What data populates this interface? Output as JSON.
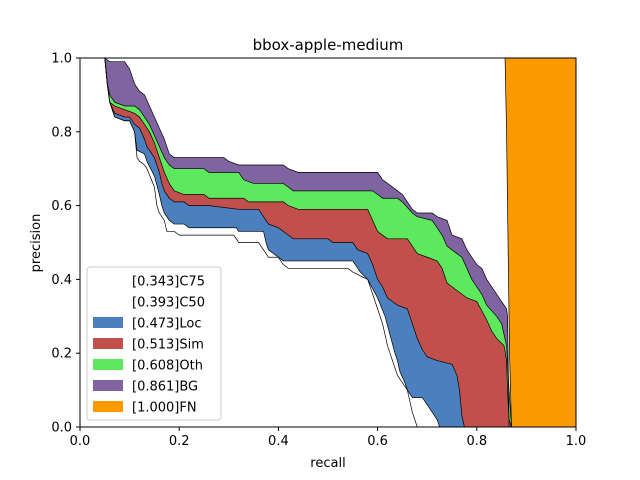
{
  "chart_data": {
    "type": "area",
    "title": "bbox-apple-medium",
    "xlabel": "recall",
    "ylabel": "precision",
    "xlim": [
      0,
      1
    ],
    "ylim": [
      0,
      1
    ],
    "xticks": [
      "0.0",
      "0.2",
      "0.4",
      "0.6",
      "0.8",
      "1.0"
    ],
    "yticks": [
      "0.0",
      "0.2",
      "0.4",
      "0.6",
      "0.8",
      "1.0"
    ],
    "legend_position": "lower-left",
    "grid": false,
    "series": [
      {
        "name": "[0.343]C75",
        "color": "#ffffff",
        "points": [
          [
            0.05,
            1.0
          ],
          [
            0.055,
            0.93
          ],
          [
            0.06,
            0.88
          ],
          [
            0.07,
            0.84
          ],
          [
            0.09,
            0.83
          ],
          [
            0.1,
            0.83
          ],
          [
            0.11,
            0.8
          ],
          [
            0.115,
            0.73
          ],
          [
            0.12,
            0.72
          ],
          [
            0.13,
            0.71
          ],
          [
            0.135,
            0.7
          ],
          [
            0.15,
            0.65
          ],
          [
            0.155,
            0.6
          ],
          [
            0.16,
            0.58
          ],
          [
            0.17,
            0.56
          ],
          [
            0.175,
            0.53
          ],
          [
            0.19,
            0.53
          ],
          [
            0.2,
            0.52
          ],
          [
            0.31,
            0.52
          ],
          [
            0.32,
            0.5
          ],
          [
            0.36,
            0.5
          ],
          [
            0.375,
            0.47
          ],
          [
            0.38,
            0.46
          ],
          [
            0.4,
            0.46
          ],
          [
            0.41,
            0.45
          ],
          [
            0.55,
            0.45
          ],
          [
            0.565,
            0.42
          ],
          [
            0.58,
            0.4
          ],
          [
            0.6,
            0.35
          ],
          [
            0.615,
            0.3
          ],
          [
            0.625,
            0.25
          ],
          [
            0.635,
            0.2
          ],
          [
            0.64,
            0.18
          ],
          [
            0.645,
            0.15
          ],
          [
            0.655,
            0.12
          ],
          [
            0.66,
            0.1
          ],
          [
            0.665,
            0.07
          ],
          [
            0.67,
            0.04
          ],
          [
            0.675,
            0.02
          ],
          [
            0.68,
            0.0
          ]
        ]
      },
      {
        "name": "[0.393]C50",
        "color": "#ffffff",
        "points": [
          [
            0.05,
            1.0
          ],
          [
            0.055,
            0.93
          ],
          [
            0.06,
            0.88
          ],
          [
            0.07,
            0.84
          ],
          [
            0.09,
            0.83
          ],
          [
            0.1,
            0.83
          ],
          [
            0.11,
            0.8
          ],
          [
            0.115,
            0.75
          ],
          [
            0.13,
            0.74
          ],
          [
            0.135,
            0.72
          ],
          [
            0.15,
            0.68
          ],
          [
            0.16,
            0.63
          ],
          [
            0.165,
            0.6
          ],
          [
            0.17,
            0.58
          ],
          [
            0.18,
            0.56
          ],
          [
            0.19,
            0.55
          ],
          [
            0.21,
            0.55
          ],
          [
            0.22,
            0.54
          ],
          [
            0.315,
            0.54
          ],
          [
            0.32,
            0.53
          ],
          [
            0.37,
            0.53
          ],
          [
            0.375,
            0.5
          ],
          [
            0.38,
            0.48
          ],
          [
            0.4,
            0.46
          ],
          [
            0.41,
            0.44
          ],
          [
            0.42,
            0.43
          ],
          [
            0.54,
            0.43
          ],
          [
            0.55,
            0.42
          ],
          [
            0.58,
            0.4
          ],
          [
            0.59,
            0.36
          ],
          [
            0.6,
            0.32
          ],
          [
            0.61,
            0.28
          ],
          [
            0.62,
            0.22
          ],
          [
            0.63,
            0.18
          ],
          [
            0.64,
            0.14
          ],
          [
            0.65,
            0.12
          ],
          [
            0.66,
            0.1
          ],
          [
            0.67,
            0.08
          ],
          [
            0.69,
            0.08
          ],
          [
            0.7,
            0.06
          ],
          [
            0.71,
            0.04
          ],
          [
            0.72,
            0.02
          ],
          [
            0.725,
            0.0
          ]
        ]
      },
      {
        "name": "[0.473]Loc",
        "color": "#4c7fbd",
        "points": [
          [
            0.05,
            1.0
          ],
          [
            0.055,
            0.93
          ],
          [
            0.06,
            0.88
          ],
          [
            0.07,
            0.85
          ],
          [
            0.09,
            0.84
          ],
          [
            0.1,
            0.84
          ],
          [
            0.11,
            0.82
          ],
          [
            0.12,
            0.81
          ],
          [
            0.13,
            0.78
          ],
          [
            0.135,
            0.76
          ],
          [
            0.15,
            0.73
          ],
          [
            0.16,
            0.69
          ],
          [
            0.165,
            0.66
          ],
          [
            0.17,
            0.64
          ],
          [
            0.18,
            0.62
          ],
          [
            0.19,
            0.61
          ],
          [
            0.21,
            0.61
          ],
          [
            0.22,
            0.6
          ],
          [
            0.26,
            0.6
          ],
          [
            0.32,
            0.59
          ],
          [
            0.36,
            0.59
          ],
          [
            0.37,
            0.57
          ],
          [
            0.38,
            0.55
          ],
          [
            0.4,
            0.54
          ],
          [
            0.42,
            0.52
          ],
          [
            0.43,
            0.51
          ],
          [
            0.5,
            0.51
          ],
          [
            0.51,
            0.5
          ],
          [
            0.55,
            0.5
          ],
          [
            0.56,
            0.48
          ],
          [
            0.58,
            0.47
          ],
          [
            0.59,
            0.44
          ],
          [
            0.6,
            0.4
          ],
          [
            0.61,
            0.38
          ],
          [
            0.62,
            0.35
          ],
          [
            0.64,
            0.33
          ],
          [
            0.66,
            0.32
          ],
          [
            0.67,
            0.28
          ],
          [
            0.68,
            0.24
          ],
          [
            0.69,
            0.21
          ],
          [
            0.7,
            0.19
          ],
          [
            0.72,
            0.18
          ],
          [
            0.75,
            0.17
          ],
          [
            0.76,
            0.14
          ],
          [
            0.765,
            0.1
          ],
          [
            0.77,
            0.03
          ],
          [
            0.775,
            0.0
          ]
        ]
      },
      {
        "name": "[0.513]Sim",
        "color": "#c1504c",
        "points": [
          [
            0.05,
            1.0
          ],
          [
            0.055,
            0.93
          ],
          [
            0.06,
            0.88
          ],
          [
            0.07,
            0.87
          ],
          [
            0.09,
            0.86
          ],
          [
            0.11,
            0.85
          ],
          [
            0.12,
            0.84
          ],
          [
            0.13,
            0.82
          ],
          [
            0.14,
            0.8
          ],
          [
            0.15,
            0.77
          ],
          [
            0.16,
            0.73
          ],
          [
            0.17,
            0.69
          ],
          [
            0.18,
            0.66
          ],
          [
            0.19,
            0.64
          ],
          [
            0.21,
            0.63
          ],
          [
            0.25,
            0.63
          ],
          [
            0.26,
            0.62
          ],
          [
            0.33,
            0.62
          ],
          [
            0.34,
            0.61
          ],
          [
            0.41,
            0.61
          ],
          [
            0.42,
            0.6
          ],
          [
            0.44,
            0.59
          ],
          [
            0.58,
            0.59
          ],
          [
            0.59,
            0.56
          ],
          [
            0.6,
            0.53
          ],
          [
            0.62,
            0.51
          ],
          [
            0.66,
            0.51
          ],
          [
            0.67,
            0.49
          ],
          [
            0.68,
            0.47
          ],
          [
            0.7,
            0.46
          ],
          [
            0.72,
            0.45
          ],
          [
            0.73,
            0.43
          ],
          [
            0.74,
            0.39
          ],
          [
            0.76,
            0.37
          ],
          [
            0.78,
            0.35
          ],
          [
            0.8,
            0.34
          ],
          [
            0.82,
            0.29
          ],
          [
            0.83,
            0.26
          ],
          [
            0.84,
            0.24
          ],
          [
            0.855,
            0.22
          ],
          [
            0.86,
            0.18
          ],
          [
            0.862,
            0.1
          ],
          [
            0.865,
            0.02
          ],
          [
            0.87,
            0.0
          ]
        ]
      },
      {
        "name": "[0.608]Oth",
        "color": "#5ee85e",
        "points": [
          [
            0.05,
            1.0
          ],
          [
            0.055,
            0.93
          ],
          [
            0.06,
            0.9
          ],
          [
            0.07,
            0.88
          ],
          [
            0.09,
            0.87
          ],
          [
            0.11,
            0.87
          ],
          [
            0.12,
            0.86
          ],
          [
            0.13,
            0.84
          ],
          [
            0.14,
            0.82
          ],
          [
            0.15,
            0.79
          ],
          [
            0.16,
            0.76
          ],
          [
            0.17,
            0.73
          ],
          [
            0.18,
            0.71
          ],
          [
            0.19,
            0.7
          ],
          [
            0.25,
            0.7
          ],
          [
            0.26,
            0.69
          ],
          [
            0.32,
            0.69
          ],
          [
            0.33,
            0.67
          ],
          [
            0.35,
            0.66
          ],
          [
            0.41,
            0.66
          ],
          [
            0.42,
            0.65
          ],
          [
            0.43,
            0.64
          ],
          [
            0.59,
            0.64
          ],
          [
            0.6,
            0.63
          ],
          [
            0.61,
            0.62
          ],
          [
            0.64,
            0.62
          ],
          [
            0.65,
            0.61
          ],
          [
            0.67,
            0.58
          ],
          [
            0.68,
            0.57
          ],
          [
            0.71,
            0.56
          ],
          [
            0.72,
            0.54
          ],
          [
            0.73,
            0.52
          ],
          [
            0.74,
            0.49
          ],
          [
            0.76,
            0.47
          ],
          [
            0.77,
            0.46
          ],
          [
            0.78,
            0.43
          ],
          [
            0.79,
            0.4
          ],
          [
            0.8,
            0.38
          ],
          [
            0.81,
            0.36
          ],
          [
            0.82,
            0.33
          ],
          [
            0.84,
            0.3
          ],
          [
            0.85,
            0.28
          ],
          [
            0.86,
            0.22
          ],
          [
            0.865,
            0.1
          ],
          [
            0.87,
            0.0
          ]
        ]
      },
      {
        "name": "[0.861]BG",
        "color": "#8064a2",
        "points": [
          [
            0.05,
            1.0
          ],
          [
            0.06,
            0.99
          ],
          [
            0.09,
            0.99
          ],
          [
            0.1,
            0.97
          ],
          [
            0.11,
            0.93
          ],
          [
            0.12,
            0.91
          ],
          [
            0.13,
            0.9
          ],
          [
            0.14,
            0.87
          ],
          [
            0.15,
            0.84
          ],
          [
            0.16,
            0.81
          ],
          [
            0.17,
            0.78
          ],
          [
            0.18,
            0.74
          ],
          [
            0.19,
            0.73
          ],
          [
            0.29,
            0.73
          ],
          [
            0.3,
            0.72
          ],
          [
            0.32,
            0.71
          ],
          [
            0.41,
            0.71
          ],
          [
            0.42,
            0.7
          ],
          [
            0.44,
            0.69
          ],
          [
            0.6,
            0.69
          ],
          [
            0.61,
            0.67
          ],
          [
            0.62,
            0.66
          ],
          [
            0.64,
            0.64
          ],
          [
            0.65,
            0.63
          ],
          [
            0.67,
            0.59
          ],
          [
            0.68,
            0.58
          ],
          [
            0.71,
            0.58
          ],
          [
            0.72,
            0.57
          ],
          [
            0.74,
            0.56
          ],
          [
            0.75,
            0.52
          ],
          [
            0.77,
            0.51
          ],
          [
            0.78,
            0.48
          ],
          [
            0.79,
            0.46
          ],
          [
            0.8,
            0.44
          ],
          [
            0.81,
            0.43
          ],
          [
            0.82,
            0.4
          ],
          [
            0.83,
            0.38
          ],
          [
            0.84,
            0.36
          ],
          [
            0.85,
            0.34
          ],
          [
            0.86,
            0.32
          ],
          [
            0.862,
            0.3
          ],
          [
            0.865,
            0.0
          ]
        ]
      },
      {
        "name": "[1.000]FN",
        "color": "#fd9a00",
        "points": [
          [
            0.857,
            1.0
          ],
          [
            0.86,
            0.8
          ],
          [
            0.862,
            0.6
          ],
          [
            0.864,
            0.4
          ],
          [
            0.866,
            0.2
          ],
          [
            0.87,
            0.0
          ]
        ]
      }
    ]
  }
}
